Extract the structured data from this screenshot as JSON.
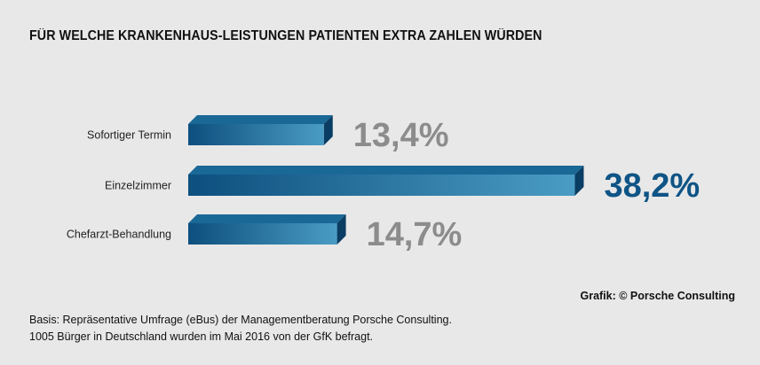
{
  "title": "FÜR WELCHE KRANKENHAUS-LEISTUNGEN PATIENTEN EXTRA ZAHLEN WÜRDEN",
  "credit": "Grafik: © Porsche Consulting",
  "basis_line1": "Basis: Repräsentative Umfrage (eBus) der Managementberatung Porsche Consulting.",
  "basis_line2": "1005 Bürger in Deutschland wurden im Mai 2016 von der GfK befragt.",
  "chart_data": {
    "type": "bar",
    "orientation": "horizontal",
    "title": "FÜR WELCHE KRANKENHAUS-LEISTUNGEN PATIENTEN EXTRA ZAHLEN WÜRDEN",
    "categories": [
      "Sofortiger Termin",
      "Einzelzimmer",
      "Chefarzt-Behandlung"
    ],
    "values": [
      13.4,
      38.2,
      14.7
    ],
    "value_labels": [
      "13,4%",
      "38,2%",
      "14,7%"
    ],
    "unit": "%",
    "highlight_index": 1,
    "colors": {
      "bar_dark": "#0d4f7e",
      "bar_light": "#4a9cc4",
      "bar_top": "#1a6896",
      "bar_side": "#0a3d63",
      "label_highlight": "#0f5486",
      "label_normal": "#8c8c8c"
    },
    "grid": false,
    "legend": "none"
  }
}
